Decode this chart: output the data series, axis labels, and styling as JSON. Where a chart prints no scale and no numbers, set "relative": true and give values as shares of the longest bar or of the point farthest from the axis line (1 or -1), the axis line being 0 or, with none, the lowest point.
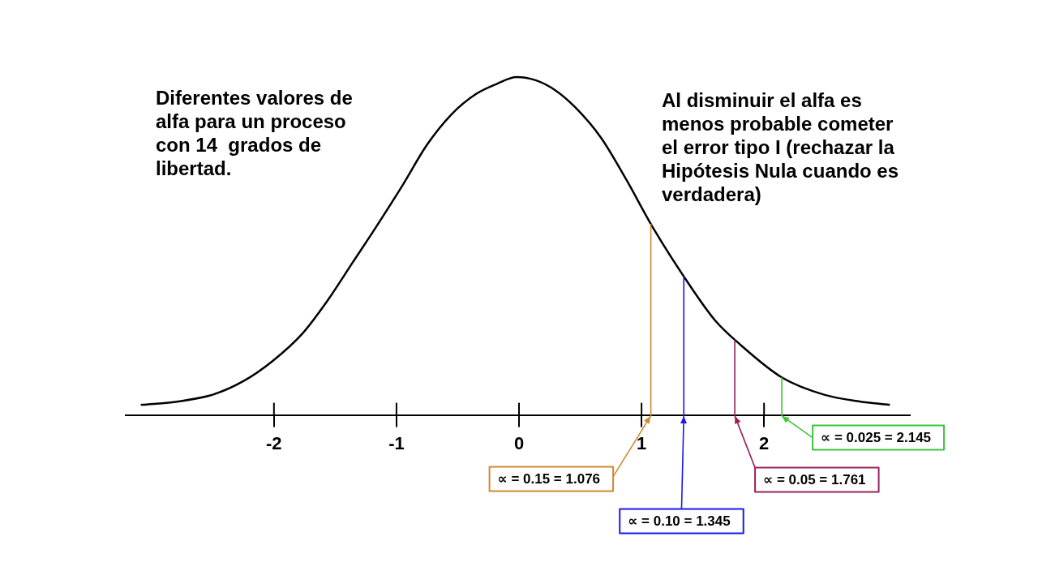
{
  "chart_data": {
    "type": "line",
    "relative": true,
    "x": [
      -3.08,
      -2.78,
      -2.5,
      -2.25,
      -2.01,
      -1.77,
      -1.56,
      -1.36,
      -1.16,
      -0.95,
      -0.75,
      -0.55,
      -0.35,
      -0.18,
      -0.02,
      0.14,
      0.3,
      0.46,
      0.67,
      0.87,
      1.1,
      1.4,
      1.6,
      1.8,
      2.15,
      2.49,
      2.78,
      3.02
    ],
    "series": [
      {
        "color": "#000000",
        "values": [
          0.03,
          0.04,
          0.06,
          0.1,
          0.16,
          0.24,
          0.34,
          0.45,
          0.56,
          0.68,
          0.8,
          0.89,
          0.95,
          0.98,
          1.0,
          0.99,
          0.96,
          0.91,
          0.82,
          0.7,
          0.55,
          0.38,
          0.28,
          0.21,
          0.11,
          0.06,
          0.04,
          0.03
        ]
      }
    ],
    "xlim": [
      -3.21,
      3.19
    ],
    "xticks": [
      -2,
      -1,
      0,
      1,
      2
    ],
    "tick_labels": "x",
    "marker": "none",
    "line_style": "solid",
    "grid": false,
    "legend": false,
    "ref_lines": [
      {
        "axis": "x",
        "value": 1.076,
        "label": "∝ = 0.15 = 1.076",
        "color": "#cf8a33"
      },
      {
        "axis": "x",
        "value": 1.345,
        "label": "∝ = 0.10 = 1.345",
        "color": "#1a1aea"
      },
      {
        "axis": "x",
        "value": 1.761,
        "label": "∝ = 0.05 = 1.761",
        "color": "#9a215f"
      },
      {
        "axis": "x",
        "value": 2.145,
        "label": "∝ = 0.025 = 2.145",
        "color": "#3fc43f"
      }
    ],
    "annotations": [
      "Diferentes valores de\nalfa para un proceso\ncon 14  grados de\nlibertad.",
      "Al disminuir el alfa es\nmenos probable cometer\nel error tipo I (rechazar la\nHipótesis Nula cuando es\nverdadera)"
    ]
  }
}
